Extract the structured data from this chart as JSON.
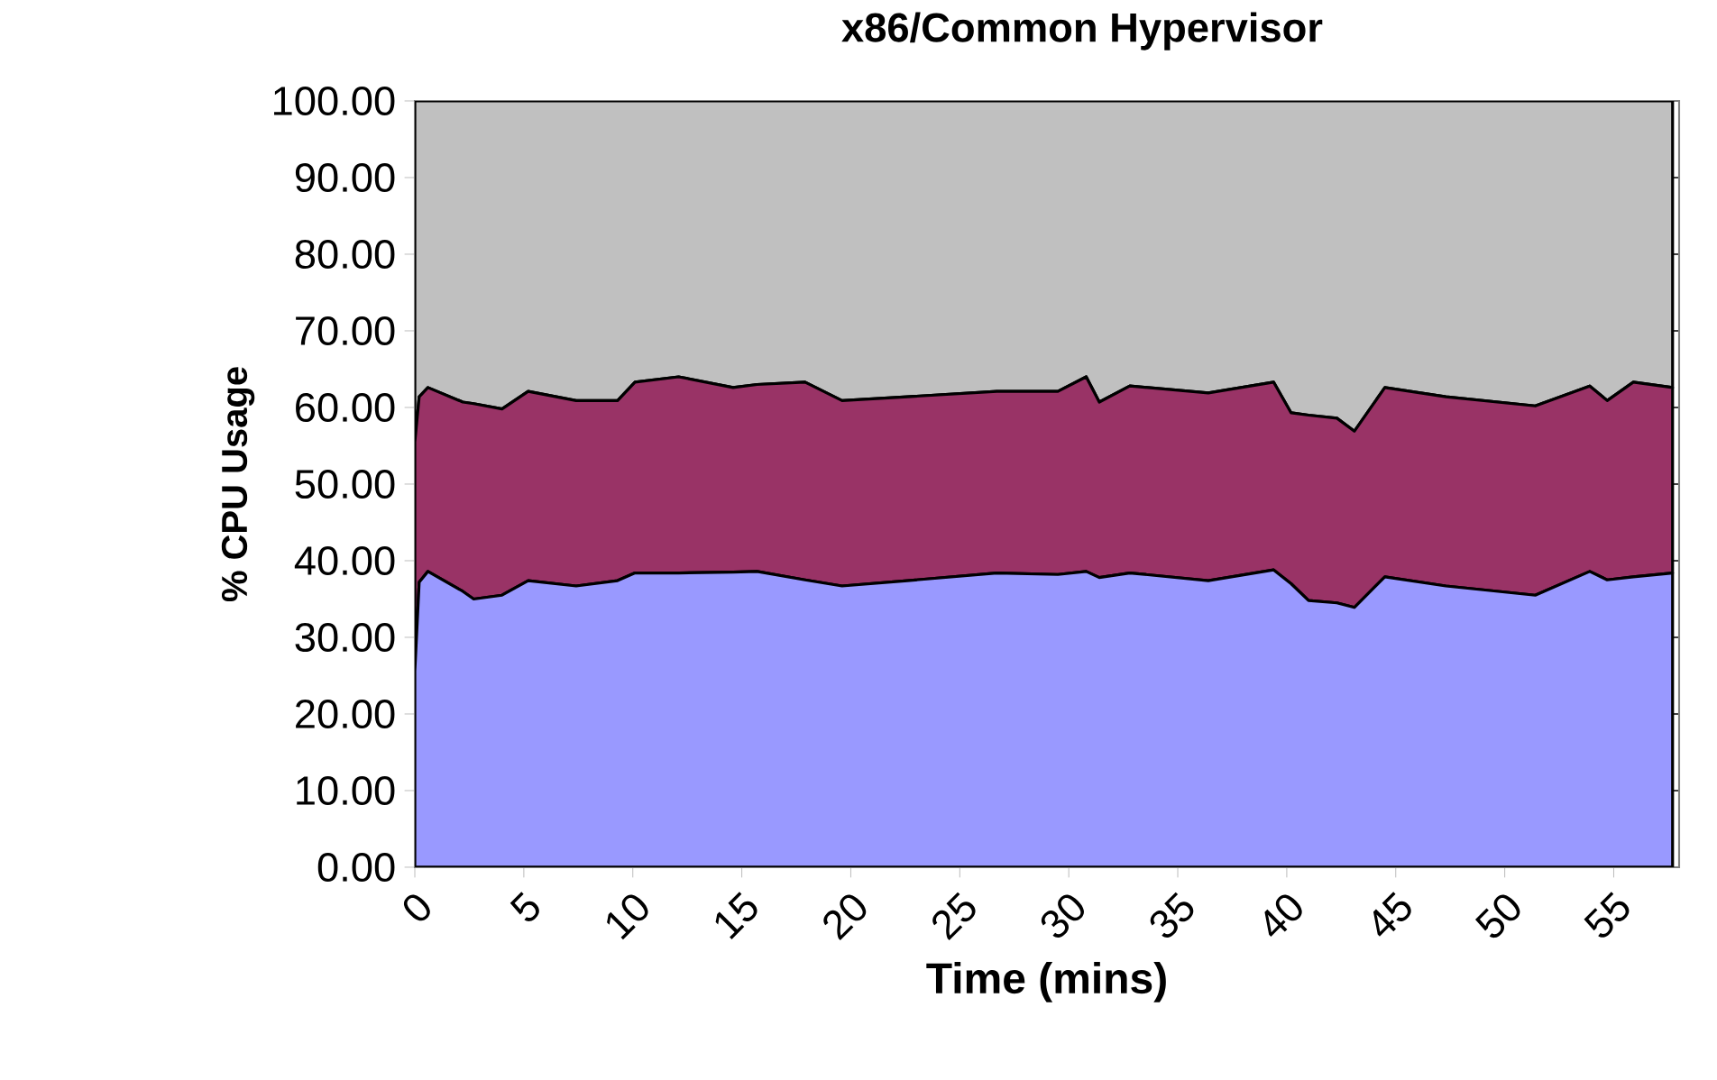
{
  "chart_data": {
    "type": "area",
    "stacked": true,
    "title": "x86/Common Hypervisor",
    "xlabel": "Time (mins)",
    "ylabel": "% CPU Usage",
    "x": [
      0,
      0.2,
      0.6,
      2.2,
      2.7,
      4,
      5.2,
      7.4,
      9.3,
      10.1,
      12.1,
      14.6,
      15.7,
      17.9,
      19.6,
      22.6,
      26.7,
      29.5,
      30.8,
      31.4,
      32.8,
      36.4,
      39.4,
      40.2,
      41.0,
      42.3,
      43.1,
      44.5,
      47.3,
      51.4,
      53.9,
      54.7,
      55.9,
      57.7
    ],
    "series": [
      {
        "color": "#9999ff",
        "values": [
          25.6,
          37.2,
          38.6,
          36,
          35,
          35.5,
          37.4,
          36.7,
          37.4,
          38.4,
          38.4,
          38.5,
          38.6,
          37.5,
          36.7,
          37.4,
          38.4,
          38.2,
          38.6,
          37.8,
          38.4,
          37.4,
          38.8,
          37,
          34.8,
          34.5,
          33.9,
          37.9,
          36.7,
          35.5,
          38.6,
          37.5,
          37.9,
          38.4
        ]
      },
      {
        "color": "#993366",
        "values": [
          29.9,
          24.2,
          24.0,
          24.7,
          25.5,
          24.3,
          24.7,
          24.2,
          23.5,
          24.9,
          25.6,
          24.1,
          24.4,
          25.8,
          24.2,
          24.0,
          23.7,
          23.9,
          25.4,
          22.9,
          24.4,
          24.5,
          24.5,
          22.3,
          24.2,
          24.1,
          23.0,
          24.7,
          24.7,
          24.7,
          24.2,
          23.4,
          25.4,
          24.2
        ]
      },
      {
        "color": "#c0c0c0",
        "values": [
          44.5,
          38.6,
          37.4,
          39.3,
          39.5,
          40.2,
          37.9,
          39.1,
          39.1,
          36.7,
          36,
          37.4,
          37,
          36.7,
          39.1,
          38.6,
          37.9,
          37.9,
          36,
          39.3,
          37.2,
          38.1,
          36.7,
          40.7,
          41,
          41.4,
          43.1,
          37.4,
          38.6,
          39.8,
          37.2,
          39.1,
          36.7,
          37.4
        ]
      }
    ],
    "xlim": [
      0,
      58
    ],
    "xticks": [
      0,
      5,
      10,
      15,
      20,
      25,
      30,
      35,
      40,
      45,
      50,
      55
    ],
    "ylim": [
      0,
      100
    ],
    "yticks": [
      {
        "value": 0,
        "label": "0.00"
      },
      {
        "value": 10,
        "label": "10.00"
      },
      {
        "value": 20,
        "label": "20.00"
      },
      {
        "value": 30,
        "label": "30.00"
      },
      {
        "value": 40,
        "label": "40.00"
      },
      {
        "value": 50,
        "label": "50.00"
      },
      {
        "value": 60,
        "label": "60.00"
      },
      {
        "value": 70,
        "label": "70.00"
      },
      {
        "value": 80,
        "label": "80.00"
      },
      {
        "value": 90,
        "label": "90.00"
      },
      {
        "value": 100,
        "label": "100.00"
      }
    ],
    "grid": "y"
  }
}
